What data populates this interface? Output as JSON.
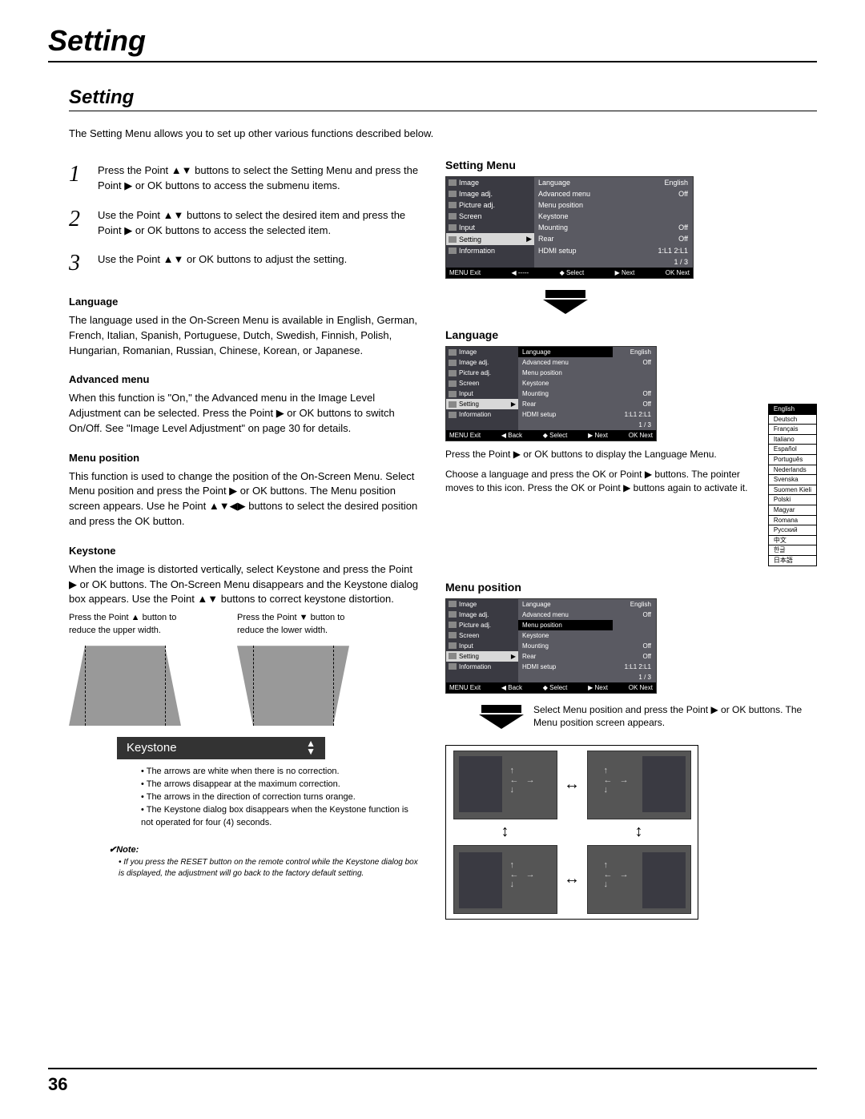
{
  "page": {
    "main_title": "Setting",
    "sub_title": "Setting",
    "intro": "The Setting Menu allows you to set up other various functions described below.",
    "page_number": "36"
  },
  "steps": [
    {
      "num": "1",
      "text": "Press the Point ▲▼ buttons to select the Setting Menu and press the Point ▶ or OK buttons to access the submenu items."
    },
    {
      "num": "2",
      "text": "Use the Point ▲▼ buttons to select the desired item and press the Point ▶ or OK buttons to access the selected item."
    },
    {
      "num": "3",
      "text": "Use the Point ▲▼ or OK buttons to adjust the setting."
    }
  ],
  "sections": {
    "language": {
      "heading": "Language",
      "body": "The language used in the On-Screen Menu is available in English, German, French, Italian, Spanish, Portuguese, Dutch, Swedish, Finnish, Polish, Hungarian, Romanian, Russian, Chinese, Korean, or Japanese."
    },
    "advanced": {
      "heading": "Advanced menu",
      "body": "When this function is \"On,\" the Advanced menu in the Image Level Adjustment can be selected. Press the Point ▶ or OK buttons to switch On/Off. See \"Image Level Adjustment\" on page 30 for details."
    },
    "menupos": {
      "heading": "Menu position",
      "body": "This function is used to change the position of the On-Screen Menu. Select Menu position and press the Point ▶ or OK buttons. The Menu position screen appears. Use he Point ▲▼◀▶ buttons to select the desired position and press the OK button."
    },
    "keystone": {
      "heading": "Keystone",
      "body": "When the image is distorted vertically, select Keystone and press the Point ▶ or OK buttons. The On-Screen Menu disappears and the Keystone dialog box appears. Use the Point ▲▼ buttons to correct keystone distortion.",
      "cap_up": "Press the Point ▲ button to reduce the upper width.",
      "cap_down": "Press the Point ▼ button to reduce the lower width.",
      "bar_label": "Keystone",
      "bullets": [
        "The arrows are white when there is no correction.",
        "The arrows disappear at the maximum correction.",
        "The arrows in the direction of correction turns orange.",
        "The Keystone dialog box disappears when the Keystone function is not operated for four (4) seconds."
      ]
    }
  },
  "note": {
    "title": "✔Note:",
    "body": "If you press the RESET button on the remote control while the Keystone dialog box is displayed, the adjustment will go back to the factory default setting."
  },
  "right": {
    "setting_menu_h": "Setting Menu",
    "language_h": "Language",
    "menupos_h": "Menu position",
    "lang_caption1": "Press the Point ▶ or OK buttons to display the Language Menu.",
    "lang_caption2": "Choose a language and press the OK or Point ▶ buttons. The pointer moves to this icon. Press the OK or Point ▶ buttons again to activate it.",
    "menupos_caption": "Select Menu position and press the Point ▶ or OK buttons. The Menu position screen appears."
  },
  "menu": {
    "left_items": [
      "Image",
      "Image adj.",
      "Picture adj.",
      "Screen",
      "Input",
      "Setting",
      "Information"
    ],
    "right_rows": [
      {
        "label": "Language",
        "val": "English"
      },
      {
        "label": "Advanced menu",
        "val": "Off"
      },
      {
        "label": "Menu position",
        "val": ""
      },
      {
        "label": "Keystone",
        "val": ""
      },
      {
        "label": "Mounting",
        "val": "Off"
      },
      {
        "label": "Rear",
        "val": "Off"
      },
      {
        "label": "HDMI setup",
        "val": "1:L1    2:L1"
      }
    ],
    "page_ind": "1 / 3",
    "foot": {
      "exit": "MENU Exit",
      "back": "◀ -----",
      "select": "◆ Select",
      "next": "▶ Next",
      "ok": "OK Next"
    },
    "foot2": {
      "exit": "MENU Exit",
      "back": "◀ Back",
      "select": "◆ Select",
      "next": "▶ Next",
      "ok": "OK Next"
    }
  },
  "languages": [
    "English",
    "Deutsch",
    "Français",
    "Italiano",
    "Español",
    "Português",
    "Nederlands",
    "Svenska",
    "Suomen Kieli",
    "Polski",
    "Magyar",
    "Romana",
    "Русский",
    "中文",
    "한글",
    "日本語"
  ],
  "colors": {
    "menu_bg": "#5a5a62",
    "menu_left_bg": "#3a3a42",
    "menu_active_bg": "#d8d8d8",
    "trap_fill": "#999999"
  }
}
